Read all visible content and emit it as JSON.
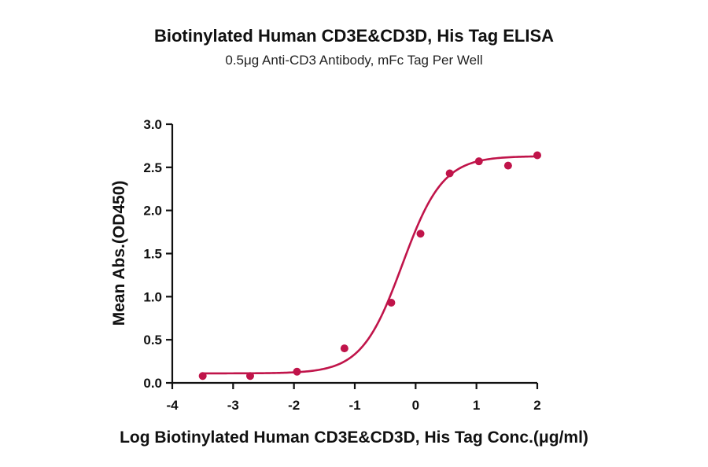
{
  "chart_data": {
    "type": "scatter",
    "title": "Biotinylated Human CD3E&CD3D, His Tag ELISA",
    "subtitle": "0.5μg Anti-CD3 Antibody, mFc Tag Per Well",
    "xlabel": "Log Biotinylated Human CD3E&CD3D, His Tag Conc.(μg/ml)",
    "ylabel": "Mean Abs.(OD450)",
    "xlim": [
      -4,
      2
    ],
    "ylim": [
      0,
      3
    ],
    "x_ticks": [
      -4,
      -3,
      -2,
      -1,
      0,
      1,
      2
    ],
    "x_tick_labels": [
      "-4",
      "-3",
      "-2",
      "-1",
      "0",
      "1",
      "2"
    ],
    "y_ticks": [
      0,
      0.5,
      1,
      1.5,
      2,
      2.5,
      3
    ],
    "y_tick_labels": [
      "0.0",
      "0.5",
      "1.0",
      "1.5",
      "2.0",
      "2.5",
      "3.0"
    ],
    "grid": false,
    "color": "#c0144a",
    "series": [
      {
        "x": [
          -3.5,
          -2.72,
          -1.95,
          -1.17,
          -0.4,
          0.08,
          0.56,
          1.04,
          1.52,
          2.0
        ],
        "y": [
          0.08,
          0.08,
          0.13,
          0.4,
          0.93,
          1.73,
          2.43,
          2.57,
          2.52,
          2.64
        ]
      }
    ],
    "fit_curve": {
      "model": "4PL",
      "bottom": 0.11,
      "top": 2.63,
      "log_ec50": -0.22,
      "hill_slope": 1.3
    }
  }
}
